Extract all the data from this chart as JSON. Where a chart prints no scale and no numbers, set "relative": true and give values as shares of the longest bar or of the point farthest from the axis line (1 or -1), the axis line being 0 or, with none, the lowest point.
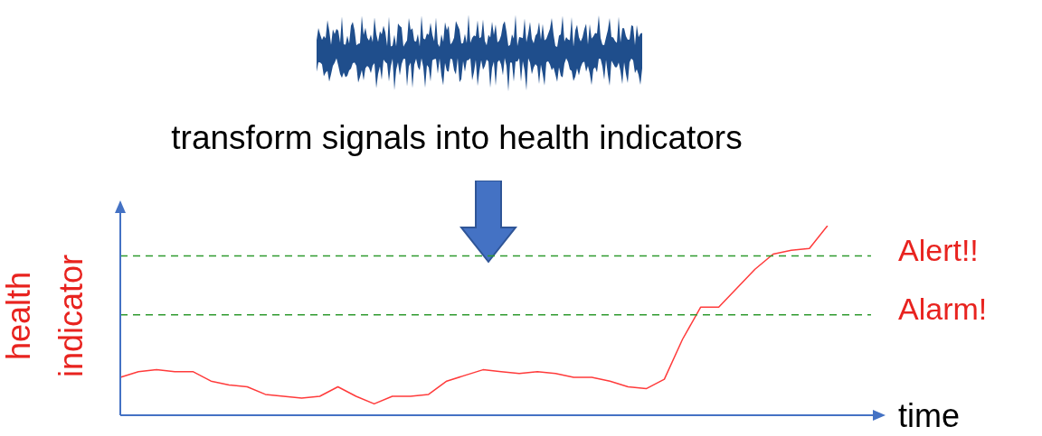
{
  "chart_data": {
    "type": "line",
    "title": "transform signals into health indicators",
    "xlabel": "time",
    "ylabel": "health indicator",
    "relative": true,
    "categories": [
      null,
      null,
      null,
      null,
      null,
      null,
      null,
      null,
      null,
      null,
      null,
      null,
      null,
      null,
      null,
      null,
      null,
      null,
      null,
      null,
      null,
      null,
      null,
      null,
      null,
      null,
      null,
      null,
      null,
      null,
      null,
      null,
      null,
      null,
      null,
      null,
      null,
      null,
      null,
      null,
      null,
      null
    ],
    "series": [
      {
        "color": "#ff3b3b",
        "values": [
          0.2,
          0.23,
          0.24,
          0.23,
          0.23,
          0.18,
          0.16,
          0.15,
          0.11,
          0.1,
          0.09,
          0.1,
          0.15,
          0.1,
          0.06,
          0.1,
          0.1,
          0.11,
          0.18,
          0.21,
          0.24,
          0.23,
          0.22,
          0.23,
          0.22,
          0.2,
          0.2,
          0.18,
          0.15,
          0.14,
          0.19,
          0.4,
          0.57,
          0.57,
          0.67,
          0.77,
          0.85,
          0.87,
          0.88,
          1,
          null,
          null
        ]
      }
    ],
    "ref_lines": [
      {
        "axis": "y",
        "value": 0.84,
        "label": "Alert!!",
        "color": "#2e9a2e",
        "line_style": "dashed"
      },
      {
        "axis": "y",
        "value": 0.53,
        "label": "Alarm!",
        "color": "#2e9a2e",
        "line_style": "dashed"
      }
    ],
    "legend": false,
    "marker": "none",
    "line_style": "solid"
  }
}
